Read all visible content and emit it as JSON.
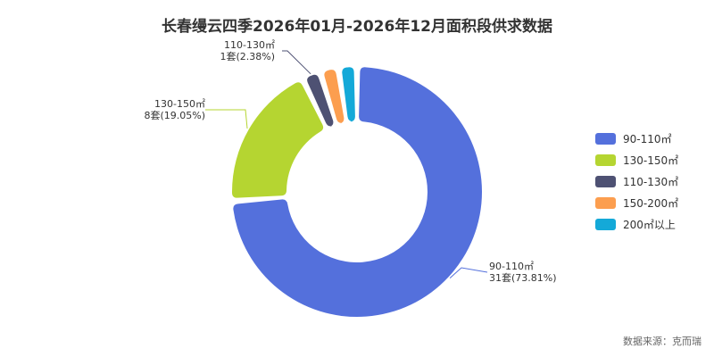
{
  "chart_data": {
    "type": "pie",
    "title": "长春缦云四季2026年01月-2026年12月面积段供求数据",
    "source": "数据来源：克而瑞",
    "legend_position": "right",
    "series": [
      {
        "name": "90-110㎡",
        "value": 31,
        "percent": "73.81%",
        "color": "#5470dc"
      },
      {
        "name": "130-150㎡",
        "value": 8,
        "percent": "19.05%",
        "color": "#b5d531"
      },
      {
        "name": "110-130㎡",
        "value": 1,
        "percent": "2.38%",
        "color": "#4e5173"
      },
      {
        "name": "150-200㎡",
        "value": 1,
        "percent": "2.38%",
        "color": "#fc9e4f"
      },
      {
        "name": "200㎡以上",
        "value": 1,
        "percent": "2.38%",
        "color": "#14a9d8"
      }
    ],
    "data_labels": [
      {
        "category": "90-110㎡",
        "line1": "90-110㎡",
        "line2": "31套(73.81%)"
      },
      {
        "category": "130-150㎡",
        "line1": "130-150㎡",
        "line2": "8套(19.05%)"
      },
      {
        "category": "110-130㎡",
        "line1": "110-130㎡",
        "line2": "1套(2.38%)"
      }
    ]
  }
}
